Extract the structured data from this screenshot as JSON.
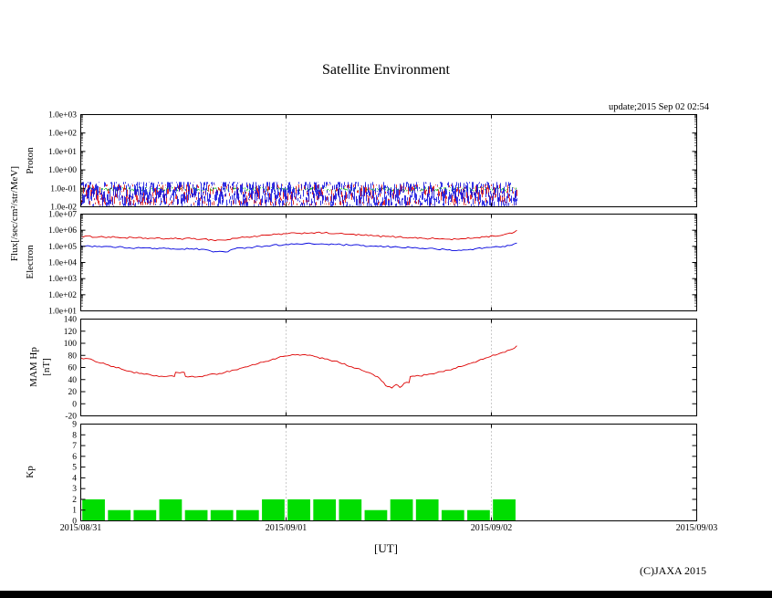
{
  "header": {
    "title": "Satellite Environment",
    "update": "update;2015 Sep 02 02:54"
  },
  "footer": {
    "copyright": "(C)JAXA 2015"
  },
  "x_axis": {
    "title": "[UT]",
    "labels": [
      "2015/08/31",
      "2015/09/01",
      "2015/09/02",
      "2015/09/03"
    ]
  },
  "axis_labels": {
    "flux": "Flux[/sec/cm²/str/MeV]"
  },
  "colors": {
    "proton_blue": "#0000dd",
    "proton_red": "#dd0000",
    "proton_green": "#00bb00",
    "electron_high": "#dd0000",
    "electron_low": "#0000dd",
    "mam_hp": "#dd0000",
    "kp_bar": "#00dd00",
    "grid": "#999999"
  },
  "chart_data": [
    {
      "id": "proton",
      "type": "line",
      "ylabel": "Proton",
      "yscale": "log",
      "ylim": [
        0.01,
        1000
      ],
      "yticks": [
        "1.0e+03",
        "1.0e+02",
        "1.0e+01",
        "1.0e+00",
        "1.0e-01",
        "1.0e-02"
      ],
      "data_end_frac": 0.708,
      "grid": "vertical-dotted",
      "series": [
        {
          "name": "proton-channel-green",
          "color": "#00bb00",
          "render": "noise",
          "flux_band": [
            0.07,
            0.115
          ]
        },
        {
          "name": "proton-channel-red",
          "color": "#dd0000",
          "render": "noise",
          "flux_band": [
            0.012,
            0.16
          ]
        },
        {
          "name": "proton-channel-blue",
          "color": "#0000dd",
          "render": "noise",
          "flux_band": [
            0.011,
            0.22
          ]
        }
      ]
    },
    {
      "id": "electron",
      "type": "line",
      "ylabel": "Electron",
      "yscale": "log",
      "ylim": [
        10,
        10000000
      ],
      "yticks": [
        "1.0e+07",
        "1.0e+06",
        "1.0e+05",
        "1.0e+04",
        "1.0e+03",
        "1.0e+02",
        "1.0e+01"
      ],
      "data_end_frac": 0.708,
      "grid": "vertical-dotted",
      "series": [
        {
          "name": "electron-high-energy",
          "color": "#dd0000",
          "x": [
            0,
            0.03,
            0.06,
            0.09,
            0.12,
            0.15,
            0.18,
            0.2,
            0.215,
            0.225,
            0.235,
            0.25,
            0.27,
            0.29,
            0.31,
            0.333,
            0.355,
            0.375,
            0.395,
            0.415,
            0.435,
            0.455,
            0.475,
            0.495,
            0.515,
            0.535,
            0.555,
            0.575,
            0.595,
            0.61,
            0.625,
            0.64,
            0.655,
            0.67,
            0.685,
            0.7,
            0.708
          ],
          "y": [
            420000.0,
            390000.0,
            360000.0,
            330000.0,
            310000.0,
            300000.0,
            300000.0,
            290000.0,
            240000.0,
            250000.0,
            240000.0,
            320000.0,
            380000.0,
            440000.0,
            520000.0,
            600000.0,
            660000.0,
            700000.0,
            680000.0,
            620000.0,
            560000.0,
            500000.0,
            450000.0,
            410000.0,
            380000.0,
            350000.0,
            320000.0,
            300000.0,
            280000.0,
            280000.0,
            300000.0,
            340000.0,
            390000.0,
            440000.0,
            500000.0,
            650000.0,
            1000000.0
          ]
        },
        {
          "name": "electron-low-energy",
          "color": "#0000dd",
          "x": [
            0,
            0.03,
            0.06,
            0.09,
            0.12,
            0.15,
            0.18,
            0.2,
            0.215,
            0.225,
            0.235,
            0.25,
            0.27,
            0.29,
            0.31,
            0.333,
            0.355,
            0.375,
            0.395,
            0.415,
            0.435,
            0.455,
            0.475,
            0.495,
            0.515,
            0.535,
            0.555,
            0.575,
            0.595,
            0.61,
            0.625,
            0.64,
            0.655,
            0.67,
            0.685,
            0.7,
            0.708
          ],
          "y": [
            110000.0,
            100000.0,
            90000.0,
            80000.0,
            75000.0,
            70000.0,
            70000.0,
            65000.0,
            45000.0,
            50000.0,
            45000.0,
            70000.0,
            85000.0,
            100000.0,
            115000.0,
            130000.0,
            140000.0,
            145000.0,
            140000.0,
            130000.0,
            120000.0,
            110000.0,
            100000.0,
            95000.0,
            90000.0,
            85000.0,
            75000.0,
            70000.0,
            60000.0,
            55000.0,
            60000.0,
            70000.0,
            80000.0,
            90000.0,
            100000.0,
            120000.0,
            160000.0
          ]
        }
      ]
    },
    {
      "id": "mam",
      "type": "line",
      "ylabel": "MAM Hp [nT]",
      "ylabel_line1": "MAM Hp",
      "ylabel_line2": "[nT]",
      "yscale": "linear",
      "ylim": [
        -20,
        140
      ],
      "yticks": [
        "140",
        "120",
        "100",
        "80",
        "60",
        "40",
        "20",
        "0",
        "-20"
      ],
      "data_end_frac": 0.708,
      "grid": "vertical-dotted",
      "series": [
        {
          "name": "hp-magnetic-field",
          "color": "#dd0000",
          "x": [
            0,
            0.02,
            0.045,
            0.07,
            0.095,
            0.115,
            0.135,
            0.152,
            0.154,
            0.168,
            0.17,
            0.185,
            0.205,
            0.225,
            0.25,
            0.275,
            0.3,
            0.32,
            0.34,
            0.36,
            0.38,
            0.4,
            0.42,
            0.44,
            0.46,
            0.475,
            0.485,
            0.495,
            0.505,
            0.512,
            0.518,
            0.525,
            0.533,
            0.535,
            0.55,
            0.565,
            0.585,
            0.605,
            0.625,
            0.645,
            0.665,
            0.685,
            0.7,
            0.708
          ],
          "y": [
            76,
            72,
            64,
            56,
            50,
            47,
            45,
            45,
            52,
            52,
            45,
            44,
            47,
            50,
            56,
            63,
            70,
            76,
            80,
            81,
            78,
            74,
            68,
            61,
            54,
            48,
            42,
            30,
            26,
            32,
            27,
            34,
            35,
            45,
            46,
            49,
            53,
            58,
            64,
            71,
            78,
            85,
            90,
            96
          ]
        }
      ]
    },
    {
      "id": "kp",
      "type": "bar",
      "ylabel": "Kp",
      "yscale": "linear",
      "ylim": [
        0,
        9
      ],
      "yticks": [
        "9",
        "8",
        "7",
        "6",
        "5",
        "4",
        "3",
        "2",
        "1",
        "0"
      ],
      "bar_interval_hours": 3,
      "color": "#00dd00",
      "grid": "vertical-dotted",
      "values": [
        2,
        1,
        1,
        2,
        1,
        1,
        1,
        2,
        2,
        2,
        2,
        1,
        2,
        2,
        1,
        1,
        2
      ]
    }
  ]
}
